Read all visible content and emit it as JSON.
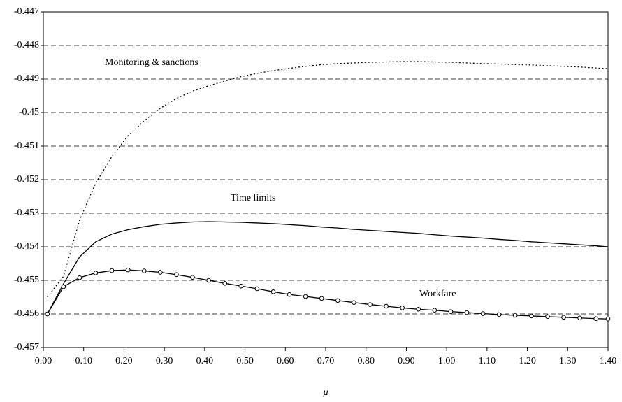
{
  "chart_data": {
    "type": "line",
    "x_label": "μ",
    "x": [
      0.01,
      0.05,
      0.09,
      0.13,
      0.17,
      0.21,
      0.25,
      0.29,
      0.33,
      0.37,
      0.41,
      0.45,
      0.49,
      0.53,
      0.57,
      0.61,
      0.65,
      0.69,
      0.73,
      0.77,
      0.81,
      0.85,
      0.89,
      0.93,
      0.97,
      1.01,
      1.05,
      1.09,
      1.13,
      1.17,
      1.21,
      1.25,
      1.29,
      1.33,
      1.37,
      1.4
    ],
    "series": [
      {
        "name": "Monitoring & sanctions",
        "color": "#000000",
        "line_style": "dotted",
        "values": [
          -0.4555,
          -0.45488,
          -0.4532,
          -0.4521,
          -0.45131,
          -0.45069,
          -0.45025,
          -0.44987,
          -0.44958,
          -0.44936,
          -0.4492,
          -0.44906,
          -0.44893,
          -0.44883,
          -0.44875,
          -0.44868,
          -0.44862,
          -0.44857,
          -0.44854,
          -0.44852,
          -0.4485,
          -0.44849,
          -0.44848,
          -0.44848,
          -0.44849,
          -0.4485,
          -0.44852,
          -0.44854,
          -0.44855,
          -0.44857,
          -0.44858,
          -0.4486,
          -0.44862,
          -0.44864,
          -0.44867,
          -0.44869
        ]
      },
      {
        "name": "Time limits",
        "color": "#000000",
        "line_style": "solid",
        "values": [
          -0.456,
          -0.4551,
          -0.4543,
          -0.45385,
          -0.45362,
          -0.45349,
          -0.4534,
          -0.45333,
          -0.45329,
          -0.45326,
          -0.45325,
          -0.45326,
          -0.45327,
          -0.45329,
          -0.45331,
          -0.45334,
          -0.45337,
          -0.45341,
          -0.45344,
          -0.45348,
          -0.45351,
          -0.45354,
          -0.45357,
          -0.4536,
          -0.45364,
          -0.45368,
          -0.45371,
          -0.45374,
          -0.45378,
          -0.45381,
          -0.45385,
          -0.45388,
          -0.45391,
          -0.45394,
          -0.45397,
          -0.454
        ]
      },
      {
        "name": "Workfare",
        "color": "#000000",
        "line_style": "solid",
        "marker": "circle",
        "values": [
          -0.456,
          -0.45519,
          -0.45492,
          -0.45478,
          -0.45471,
          -0.45469,
          -0.45472,
          -0.45476,
          -0.45483,
          -0.45491,
          -0.455,
          -0.45509,
          -0.45517,
          -0.45525,
          -0.45534,
          -0.45542,
          -0.45548,
          -0.45554,
          -0.4556,
          -0.45566,
          -0.45572,
          -0.45577,
          -0.45582,
          -0.45586,
          -0.45589,
          -0.45593,
          -0.45596,
          -0.45599,
          -0.45602,
          -0.45604,
          -0.45606,
          -0.45608,
          -0.4561,
          -0.45612,
          -0.45614,
          -0.45615
        ]
      }
    ],
    "xlim": [
      0,
      1.4
    ],
    "xticks": [
      {
        "value": 0,
        "label": "0.00"
      },
      {
        "value": 0.1,
        "label": "0.10"
      },
      {
        "value": 0.2,
        "label": "0.20"
      },
      {
        "value": 0.3,
        "label": "0.30"
      },
      {
        "value": 0.4,
        "label": "0.40"
      },
      {
        "value": 0.5,
        "label": "0.50"
      },
      {
        "value": 0.6,
        "label": "0.60"
      },
      {
        "value": 0.7,
        "label": "0.70"
      },
      {
        "value": 0.8,
        "label": "0.80"
      },
      {
        "value": 0.9,
        "label": "0.90"
      },
      {
        "value": 1,
        "label": "1.00"
      },
      {
        "value": 1.1,
        "label": "1.10"
      },
      {
        "value": 1.2,
        "label": "1.20"
      },
      {
        "value": 1.3,
        "label": "1.30"
      },
      {
        "value": 1.4,
        "label": "1.40"
      }
    ],
    "ylim": [
      -0.457,
      -0.447
    ],
    "yticks": [
      -0.457,
      -0.456,
      -0.455,
      -0.454,
      -0.453,
      -0.452,
      -0.451,
      -0.45,
      -0.449,
      -0.448,
      -0.447
    ],
    "grid": true
  }
}
